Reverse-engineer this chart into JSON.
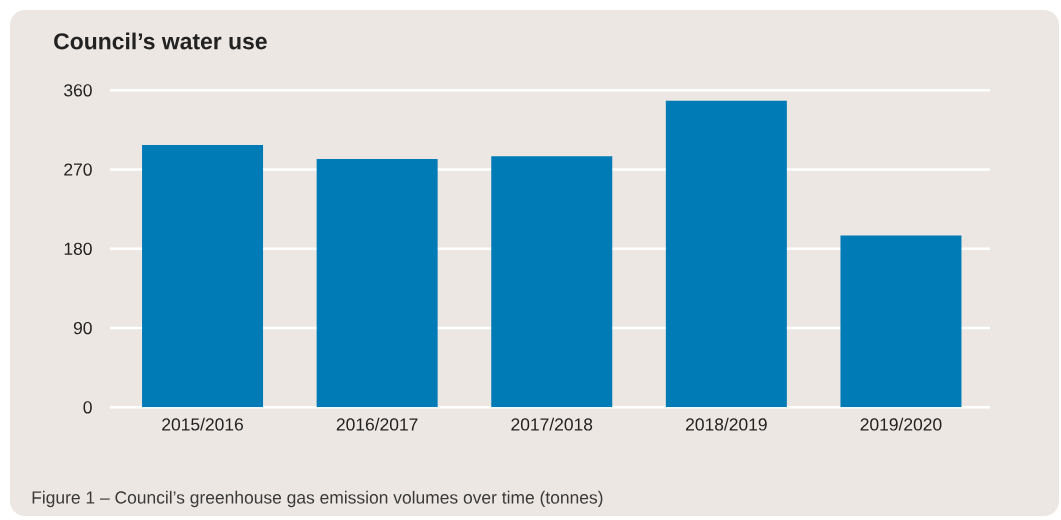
{
  "chart_data": {
    "type": "bar",
    "title": "Council’s water use",
    "categories": [
      "2015/2016",
      "2016/2017",
      "2017/2018",
      "2018/2019",
      "2019/2020"
    ],
    "values": [
      298,
      282,
      285,
      348,
      195
    ],
    "color": "#007bb6",
    "ylim": [
      0,
      360
    ],
    "yticks": [
      0,
      90,
      180,
      270,
      360
    ],
    "grid": "y",
    "annotations": [
      "Figure 1 – Council’s greenhouse gas emission volumes over time (tonnes)"
    ]
  }
}
